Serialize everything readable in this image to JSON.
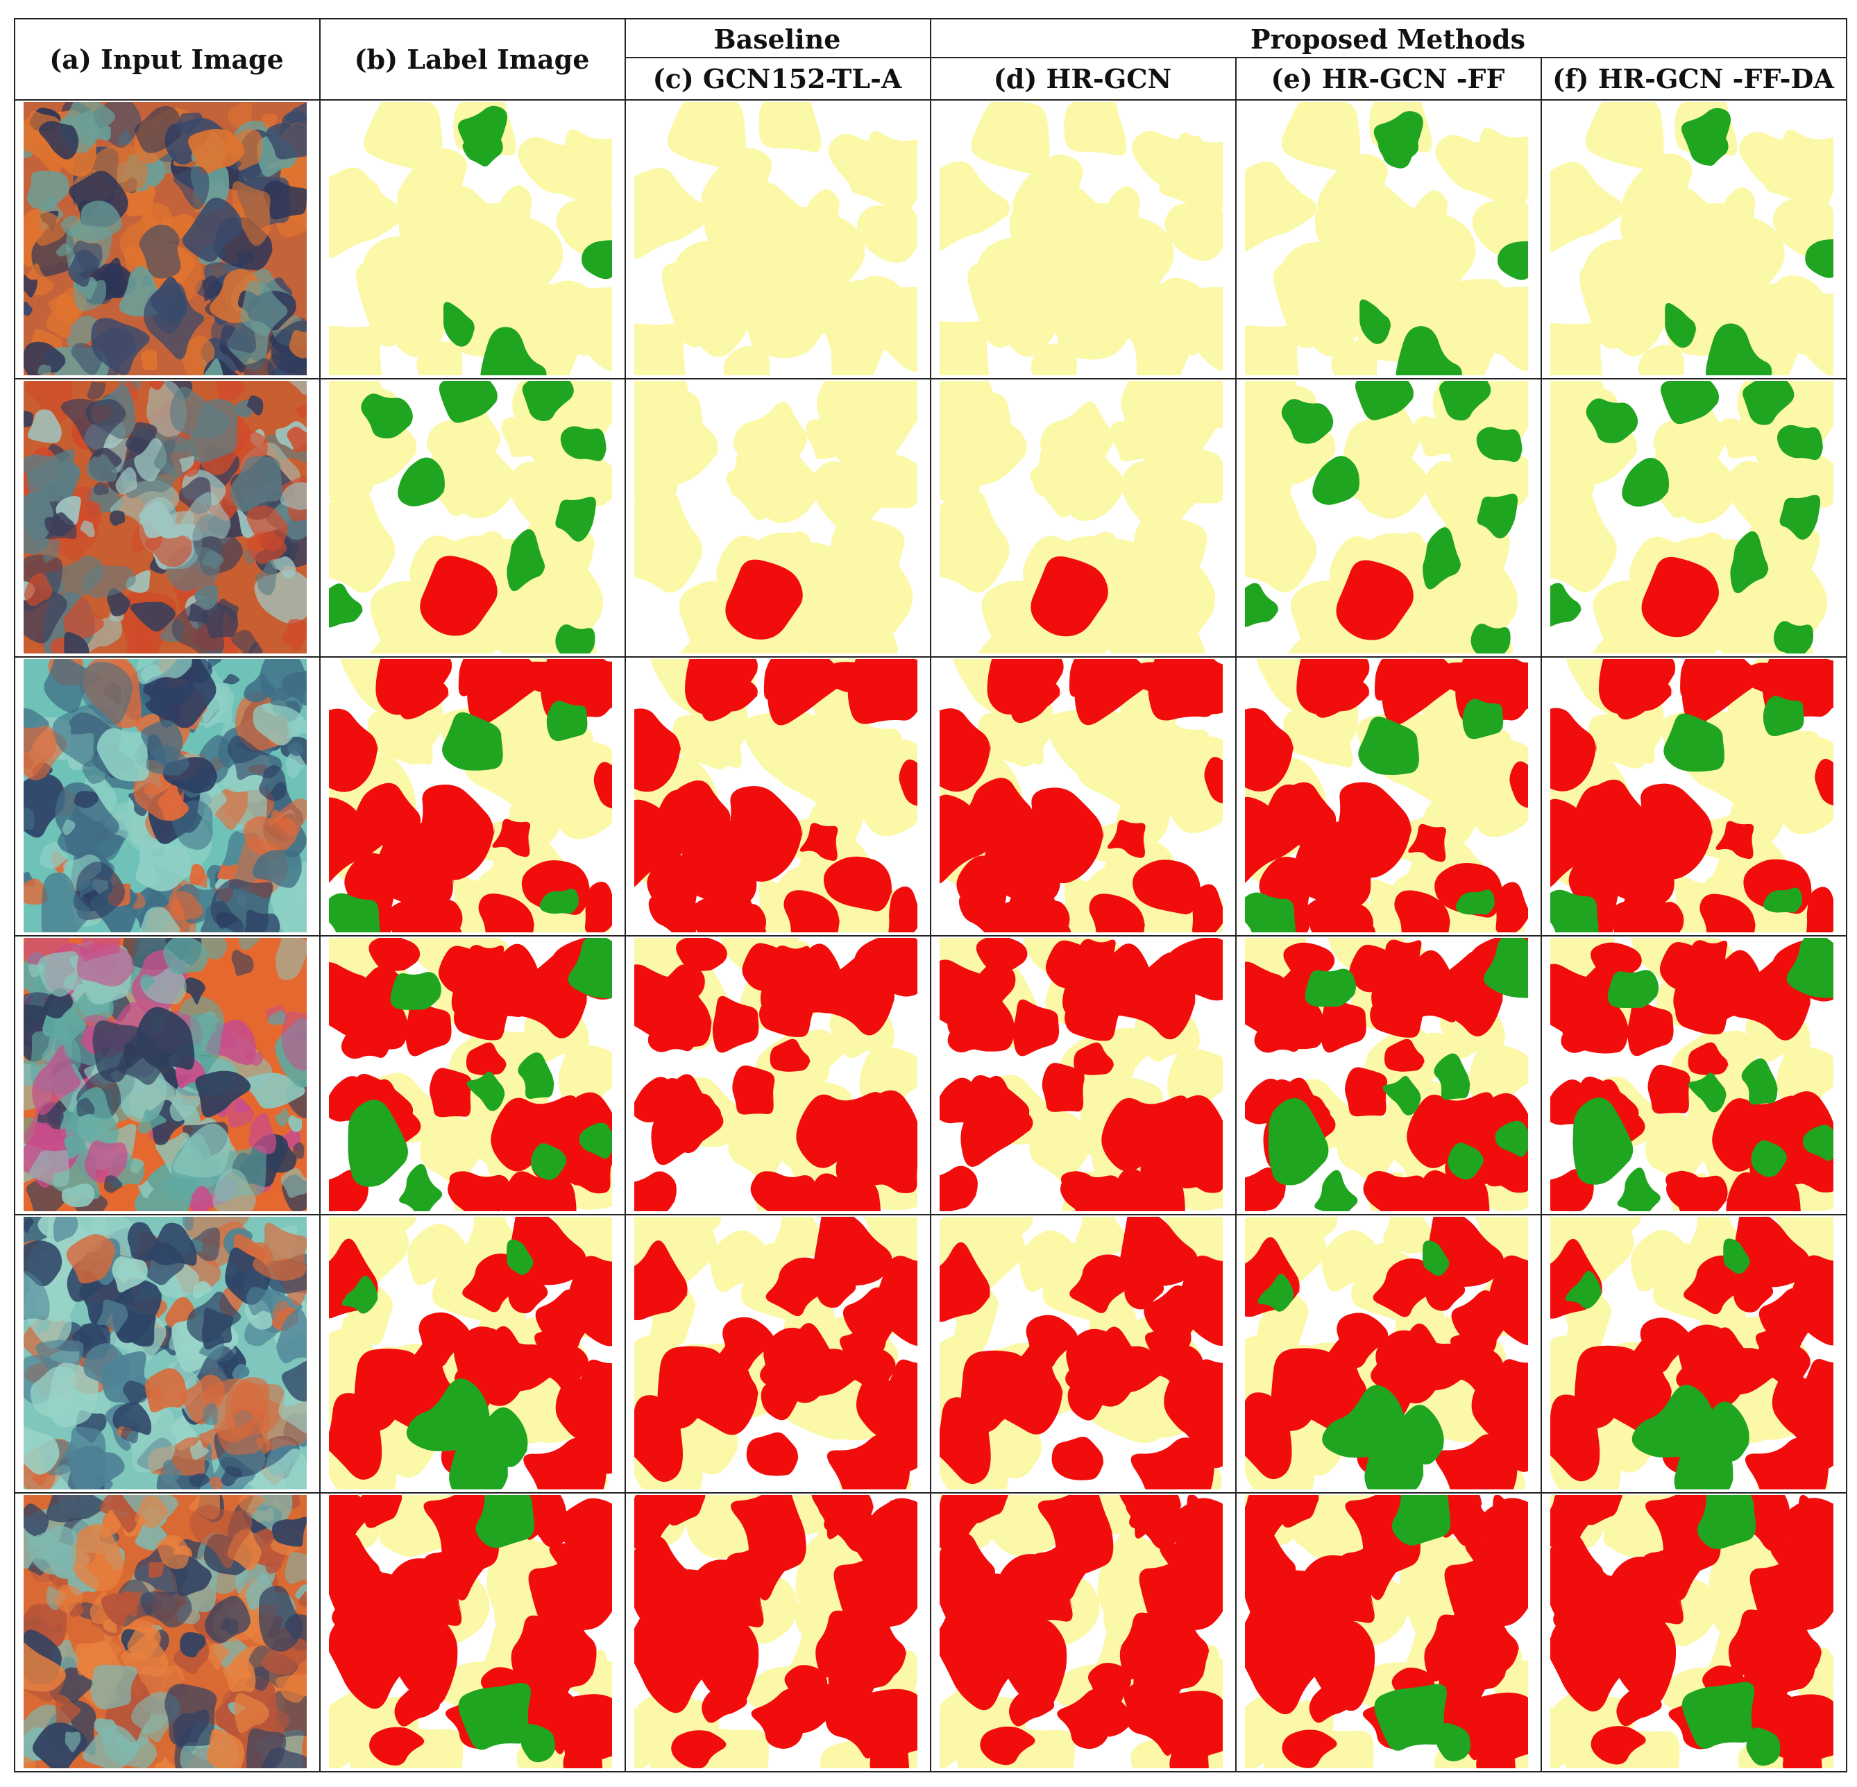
{
  "figure": {
    "group_headers": {
      "baseline": "Baseline",
      "proposed": "Proposed Methods"
    },
    "columns": [
      {
        "id": "a",
        "label": "(a)  Input Image"
      },
      {
        "id": "b",
        "label": "(b)  Label Image"
      },
      {
        "id": "c",
        "label": "(c)  GCN152-TL-A"
      },
      {
        "id": "d",
        "label": "(d)  HR-GCN"
      },
      {
        "id": "e",
        "label": "(e)  HR-GCN -FF"
      },
      {
        "id": "f",
        "label": "(f)  HR-GCN -FF-DA"
      }
    ],
    "rows": 6,
    "colors": {
      "yellow_class": "#fbf8a8",
      "green_class": "#1fa51f",
      "red_class": "#f20d0d",
      "background": "#ffffff",
      "grid_line": "#222222"
    }
  }
}
